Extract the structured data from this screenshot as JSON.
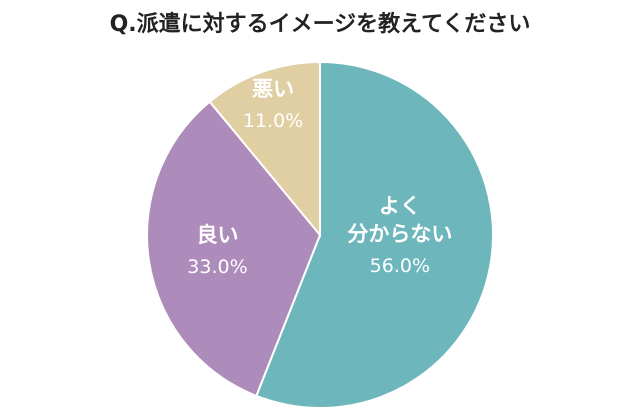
{
  "chart_data": {
    "type": "pie",
    "title": "Q.派遣に対するイメージを教えてください",
    "categories": [
      "よく\n分からない",
      "良い",
      "悪い"
    ],
    "values": [
      56,
      33,
      11
    ],
    "value_labels": [
      "56.0%",
      "33.0%",
      "11.0%"
    ],
    "colors": [
      "#6db6bc",
      "#ad8bbb",
      "#e0cfa3"
    ]
  }
}
